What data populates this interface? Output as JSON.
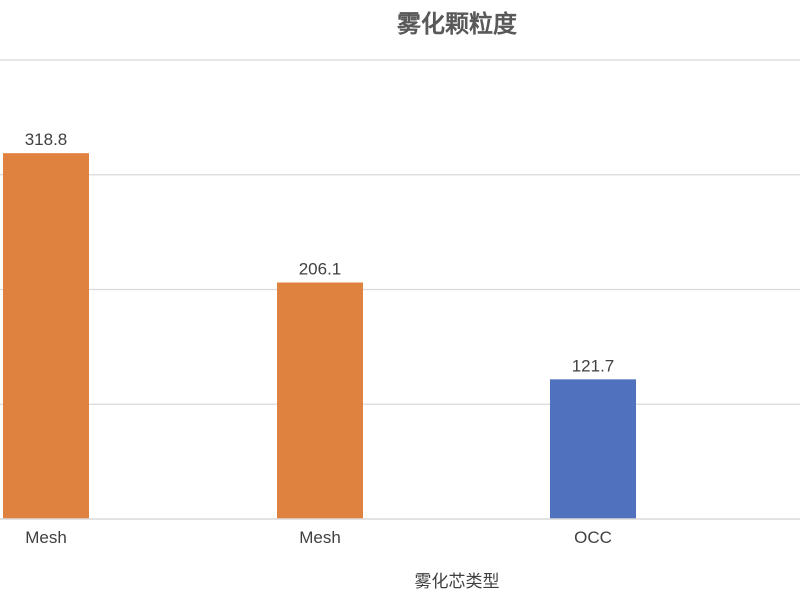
{
  "chart_data": {
    "type": "bar",
    "title": "雾化颗粒度",
    "xlabel": "雾化芯类型",
    "ylabel": "",
    "categories": [
      "Mesh",
      "Mesh",
      "OCC"
    ],
    "values": [
      318.8,
      206.1,
      121.7
    ],
    "data_labels": [
      "318.8",
      "206.1",
      "121.7"
    ],
    "colors": [
      "#E0823F",
      "#E0823F",
      "#4F71BE"
    ],
    "ylim": [
      0,
      400
    ],
    "y_gridlines": [
      100,
      200,
      300,
      400
    ],
    "grid": true,
    "legend": "none"
  }
}
